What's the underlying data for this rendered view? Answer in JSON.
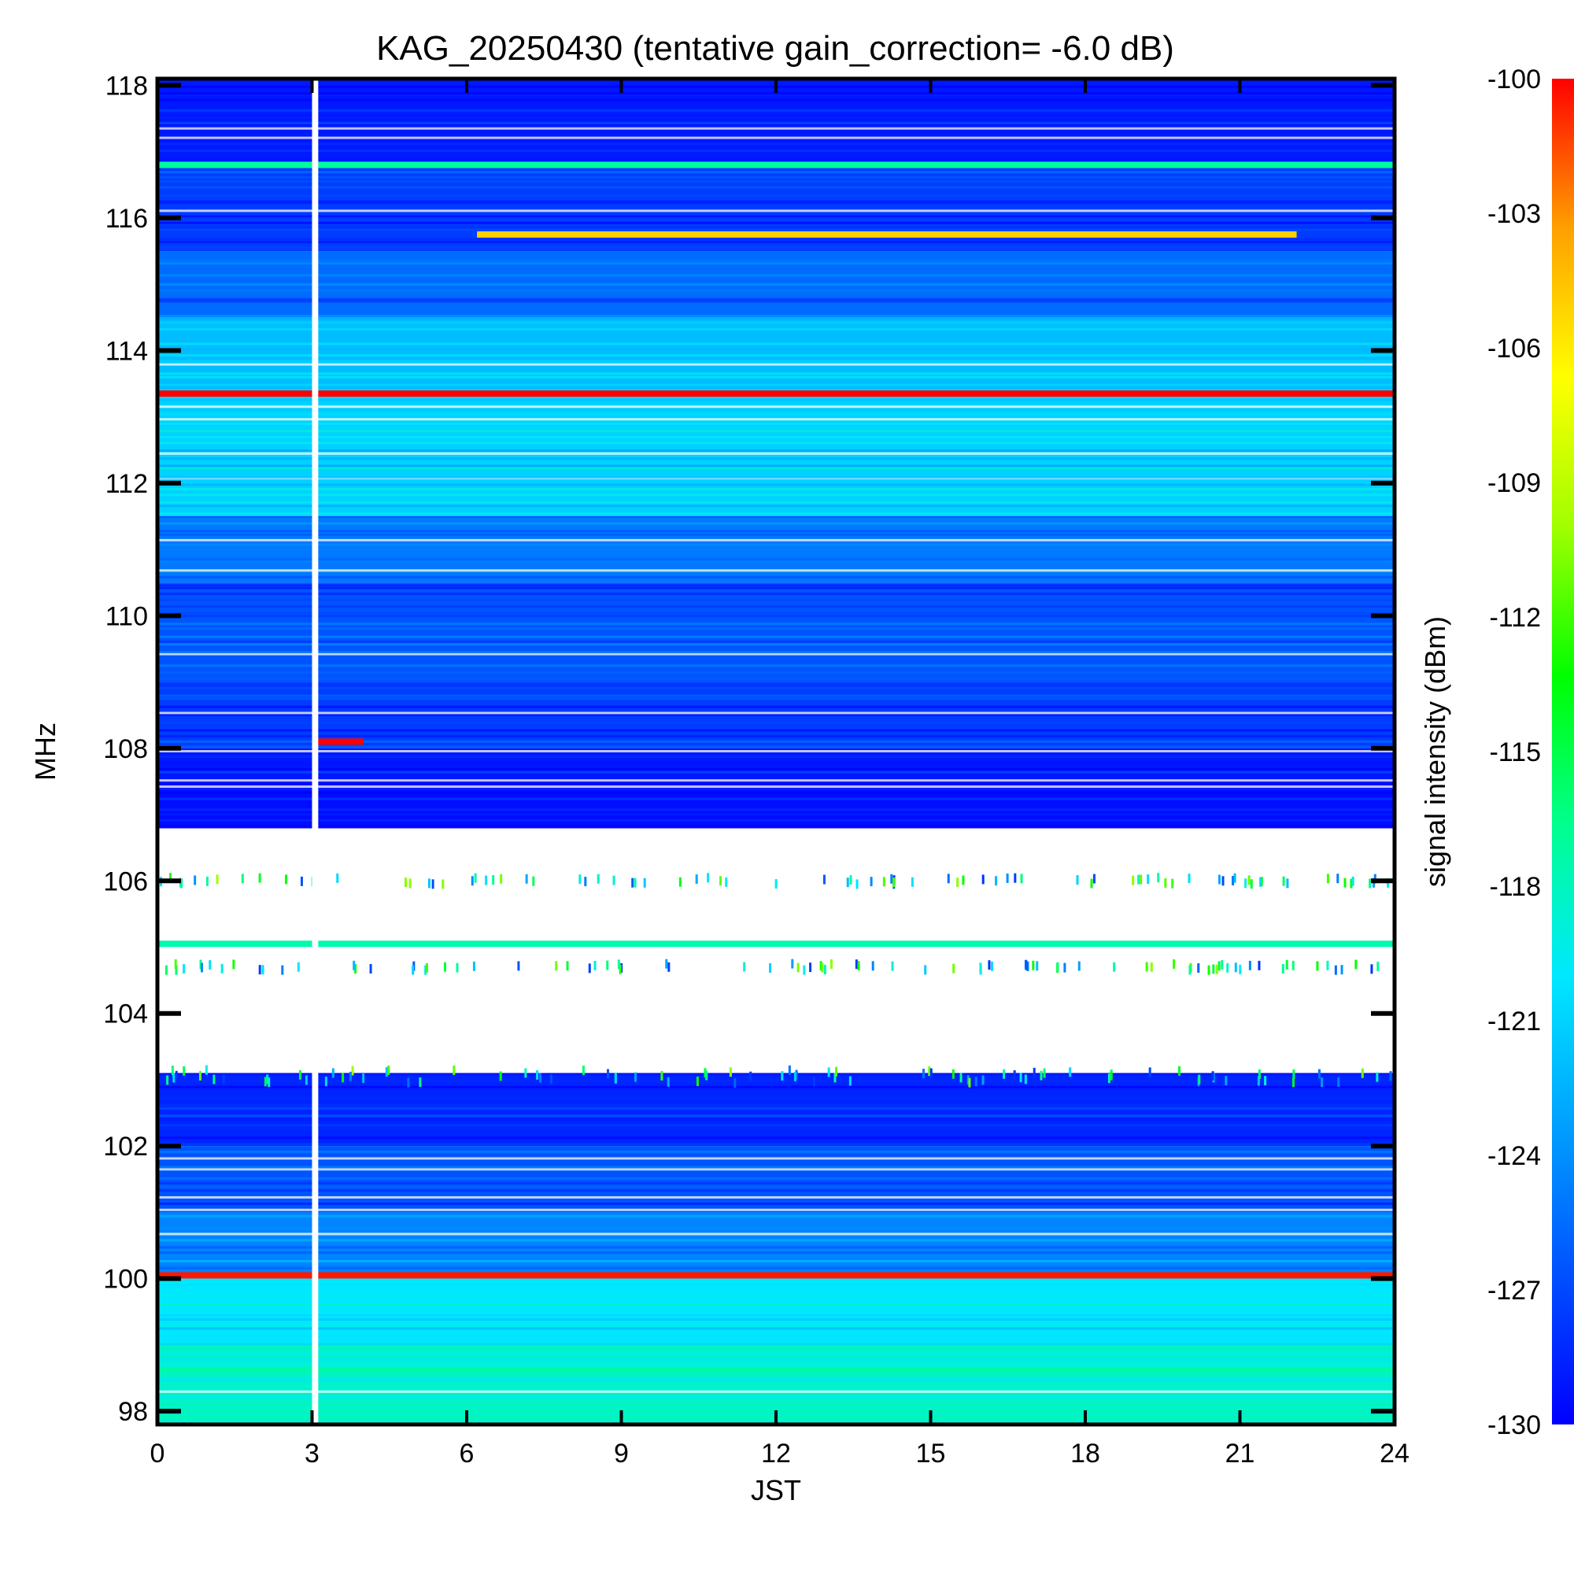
{
  "chart_data": {
    "type": "heatmap",
    "title": "KAG_20250430 (tentative gain_correction= -6.0 dB)",
    "xlabel": "JST",
    "ylabel": "MHz",
    "colorbar_label": "signal intensity (dBm)",
    "xlim": [
      0,
      24
    ],
    "ylim": [
      97.8,
      118.1
    ],
    "x_ticks": [
      0,
      3,
      6,
      9,
      12,
      15,
      18,
      21,
      24
    ],
    "x_tick_labels": [
      "0",
      "3",
      "6",
      "9",
      "12",
      "15",
      "18",
      "21",
      "24"
    ],
    "y_ticks": [
      98,
      100,
      102,
      104,
      106,
      108,
      110,
      112,
      114,
      116,
      118
    ],
    "y_tick_labels": [
      "98",
      "100",
      "102",
      "104",
      "106",
      "108",
      "110",
      "112",
      "114",
      "116",
      "118"
    ],
    "clim": [
      -130,
      -100
    ],
    "colorbar_ticks": [
      -100,
      -103,
      -106,
      -109,
      -112,
      -115,
      -118,
      -121,
      -124,
      -127,
      -130
    ],
    "colorbar_tick_labels": [
      "-100",
      "-103",
      "-106",
      "-109",
      "-112",
      "-115",
      "-118",
      "-121",
      "-124",
      "-127",
      "-130"
    ],
    "colormap": [
      "#0000ff",
      "#0050ff",
      "#00a0ff",
      "#00e8ff",
      "#00ff90",
      "#00ff00",
      "#a0ff00",
      "#ffff00",
      "#ffa000",
      "#ff0000"
    ],
    "background_bands": [
      {
        "f_low": 97.8,
        "f_high": 99.0,
        "level_dbm": -118.5
      },
      {
        "f_low": 99.0,
        "f_high": 100.0,
        "level_dbm": -120
      },
      {
        "f_low": 100.0,
        "f_high": 101.0,
        "level_dbm": -124.5
      },
      {
        "f_low": 101.0,
        "f_high": 102.0,
        "level_dbm": -126.5
      },
      {
        "f_low": 102.0,
        "f_high": 103.1,
        "level_dbm": -128.5
      },
      {
        "f_low": 106.8,
        "f_high": 107.5,
        "level_dbm": -129.5
      },
      {
        "f_low": 107.5,
        "f_high": 108.0,
        "level_dbm": -129
      },
      {
        "f_low": 108.0,
        "f_high": 109.0,
        "level_dbm": -127.5
      },
      {
        "f_low": 109.0,
        "f_high": 110.5,
        "level_dbm": -126.5
      },
      {
        "f_low": 110.5,
        "f_high": 111.5,
        "level_dbm": -125
      },
      {
        "f_low": 111.5,
        "f_high": 113.3,
        "level_dbm": -121
      },
      {
        "f_low": 113.3,
        "f_high": 114.5,
        "level_dbm": -122
      },
      {
        "f_low": 114.5,
        "f_high": 115.5,
        "level_dbm": -125.5
      },
      {
        "f_low": 115.5,
        "f_high": 116.8,
        "level_dbm": -127.5
      },
      {
        "f_low": 116.8,
        "f_high": 118.1,
        "level_dbm": -129
      }
    ],
    "carriers": [
      {
        "freq_mhz": 113.35,
        "t_start": 0,
        "t_end": 24,
        "level_dbm": -100
      },
      {
        "freq_mhz": 100.05,
        "t_start": 0,
        "t_end": 24,
        "level_dbm": -100.5
      },
      {
        "freq_mhz": 116.8,
        "t_start": 0,
        "t_end": 24,
        "level_dbm": -117
      },
      {
        "freq_mhz": 105.05,
        "t_start": 0,
        "t_end": 24,
        "level_dbm": -117.5
      },
      {
        "freq_mhz": 115.75,
        "t_start": 6.2,
        "t_end": 22.1,
        "level_dbm": -105
      },
      {
        "freq_mhz": 108.1,
        "t_start": 3.0,
        "t_end": 4.0,
        "level_dbm": -100
      }
    ],
    "noise_bands": [
      {
        "f_low": 102.95,
        "f_high": 103.15
      },
      {
        "f_low": 104.65,
        "f_high": 104.75
      },
      {
        "f_low": 105.95,
        "f_high": 106.05
      }
    ],
    "data_gaps": [
      {
        "t_start": 3.0,
        "t_end": 3.12,
        "f_low": 97.8,
        "f_high": 118.1
      }
    ]
  }
}
